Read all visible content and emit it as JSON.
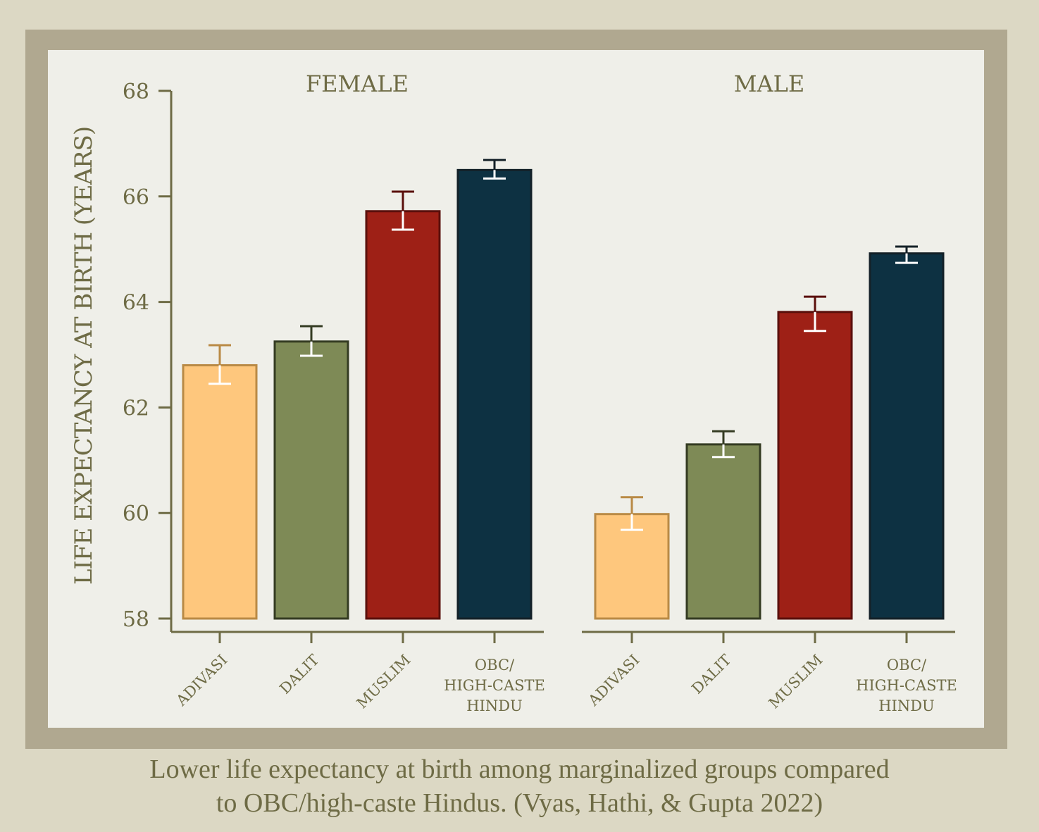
{
  "chart_data": {
    "type": "bar",
    "ylabel": "LIFE EXPECTANCY AT BIRTH (YEARS)",
    "ylim": [
      58,
      68
    ],
    "yticks": [
      58,
      60,
      62,
      64,
      66,
      68
    ],
    "categories": [
      "ADIVASI",
      "DALIT",
      "MUSLIM",
      "OBC/ HIGH-CASTE HINDU"
    ],
    "category_lines": [
      [
        "ADIVASI"
      ],
      [
        "DALIT"
      ],
      [
        "MUSLIM"
      ],
      [
        "OBC/",
        "HIGH-CASTE",
        "HINDU"
      ]
    ],
    "category_colors": [
      {
        "fill": "#fec77d",
        "stroke": "#b98a45",
        "err_top": "#b98a45"
      },
      {
        "fill": "#7e8a56",
        "stroke": "#343b22",
        "err_top": "#343b22"
      },
      {
        "fill": "#9e2016",
        "stroke": "#5a0f0b",
        "err_top": "#5a0f0b"
      },
      {
        "fill": "#0d3142",
        "stroke": "#142128",
        "err_top": "#142128"
      }
    ],
    "panels": [
      {
        "title": "FEMALE",
        "values": [
          62.8,
          63.25,
          65.72,
          66.5
        ],
        "err_low": [
          62.45,
          62.98,
          65.37,
          66.34
        ],
        "err_high": [
          63.18,
          63.54,
          66.09,
          66.69
        ]
      },
      {
        "title": "MALE",
        "values": [
          59.98,
          61.3,
          63.81,
          64.92
        ],
        "err_low": [
          59.68,
          61.06,
          63.45,
          64.74
        ],
        "err_high": [
          60.3,
          61.55,
          64.1,
          65.05
        ]
      }
    ]
  },
  "caption": {
    "line1": "Lower life expectancy at birth among marginalized groups compared",
    "line2": "to OBC/high-caste Hindus. (Vyas, Hathi, & Gupta 2022)"
  }
}
